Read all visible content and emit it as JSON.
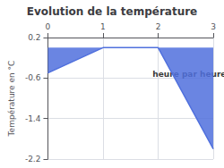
{
  "chart_data": {
    "type": "area",
    "title": "Evolution de la température",
    "ylabel": "Température en °C",
    "x": [
      0,
      1,
      2,
      3
    ],
    "values": [
      -0.5,
      0.0,
      0.0,
      -2.0
    ],
    "xlim": [
      0,
      3
    ],
    "xticks": [
      0,
      1,
      2,
      3
    ],
    "ylim": [
      -2.2,
      0.2
    ],
    "yticks": [
      0.2,
      -0.6,
      -1.4,
      -2.2
    ],
    "grid": true,
    "annotations": [
      {
        "text": "heure par heure",
        "x": 1.9,
        "y": -0.45
      }
    ]
  }
}
